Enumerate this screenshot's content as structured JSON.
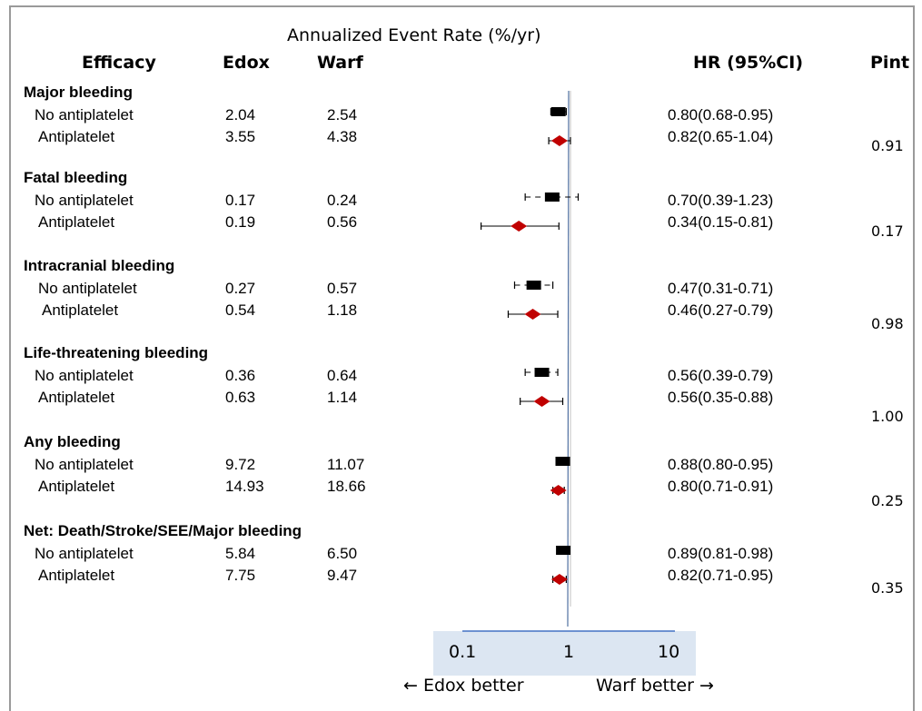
{
  "chart_data": {
    "type": "forest",
    "title": "Annualized Event Rate (%/yr)",
    "columns": {
      "group": "Efficacy",
      "edox": "Edox",
      "warf": "Warf",
      "hr": "HR (95%CI)",
      "pint": "Pint"
    },
    "x_scale": "log",
    "xlim": [
      0.1,
      10
    ],
    "x_ticks": [
      "0.1",
      "1",
      "10"
    ],
    "reference_line": 1,
    "left_label": "← Edox better",
    "right_label": "Warf better →",
    "marker_colors": {
      "No antiplatelet": "#000000",
      "Antiplatelet": "#c00000"
    },
    "marker_shapes": {
      "No antiplatelet": "square",
      "Antiplatelet": "diamond"
    },
    "ci_styles": {
      "No antiplatelet": "dashed",
      "Antiplatelet": "solid"
    },
    "sections": [
      {
        "name": "Major bleeding",
        "pint": "0.91",
        "rows": [
          {
            "label": "No antiplatelet",
            "edox": "2.04",
            "warf": "2.54",
            "hr_text": "0.80(0.68-0.95)",
            "hr": 0.8,
            "lo": 0.68,
            "hi": 0.95
          },
          {
            "label": "Antiplatelet",
            "edox": "3.55",
            "warf": "4.38",
            "hr_text": "0.82(0.65-1.04)",
            "hr": 0.82,
            "lo": 0.65,
            "hi": 1.04
          }
        ]
      },
      {
        "name": "Fatal bleeding",
        "pint": "0.17",
        "rows": [
          {
            "label": "No antiplatelet",
            "edox": "0.17",
            "warf": "0.24",
            "hr_text": "0.70(0.39-1.23)",
            "hr": 0.7,
            "lo": 0.39,
            "hi": 1.23
          },
          {
            "label": "Antiplatelet",
            "edox": "0.19",
            "warf": "0.56",
            "hr_text": "0.34(0.15-0.81)",
            "hr": 0.34,
            "lo": 0.15,
            "hi": 0.81
          }
        ]
      },
      {
        "name": "Intracranial bleeding",
        "pint": "0.98",
        "rows": [
          {
            "label": "No antiplatelet",
            "edox": "0.27",
            "warf": "0.57",
            "hr_text": "0.47(0.31-0.71)",
            "hr": 0.47,
            "lo": 0.31,
            "hi": 0.71
          },
          {
            "label": "Antiplatelet",
            "edox": "0.54",
            "warf": "1.18",
            "hr_text": "0.46(0.27-0.79)",
            "hr": 0.46,
            "lo": 0.27,
            "hi": 0.79
          }
        ]
      },
      {
        "name": "Life-threatening bleeding",
        "pint": "1.00",
        "rows": [
          {
            "label": "No antiplatelet",
            "edox": "0.36",
            "warf": "0.64",
            "hr_text": "0.56(0.39-0.79)",
            "hr": 0.56,
            "lo": 0.39,
            "hi": 0.79
          },
          {
            "label": "Antiplatelet",
            "edox": "0.63",
            "warf": "1.14",
            "hr_text": "0.56(0.35-0.88)",
            "hr": 0.56,
            "lo": 0.35,
            "hi": 0.88
          }
        ]
      },
      {
        "name": "Any bleeding",
        "pint": "0.25",
        "rows": [
          {
            "label": "No antiplatelet",
            "edox": "9.72",
            "warf": "11.07",
            "hr_text": "0.88(0.80-0.95)",
            "hr": 0.88,
            "lo": 0.8,
            "hi": 0.95
          },
          {
            "label": "Antiplatelet",
            "edox": "14.93",
            "warf": "18.66",
            "hr_text": "0.80(0.71-0.91)",
            "hr": 0.8,
            "lo": 0.71,
            "hi": 0.91
          }
        ]
      },
      {
        "name": "Net: Death/Stroke/SEE/Major bleeding",
        "pint": "0.35",
        "rows": [
          {
            "label": "No antiplatelet",
            "edox": "5.84",
            "warf": "6.50",
            "hr_text": "0.89(0.81-0.98)",
            "hr": 0.89,
            "lo": 0.81,
            "hi": 0.98
          },
          {
            "label": "Antiplatelet",
            "edox": "7.75",
            "warf": "9.47",
            "hr_text": "0.82(0.71-0.95)",
            "hr": 0.82,
            "lo": 0.71,
            "hi": 0.95
          }
        ]
      }
    ]
  }
}
